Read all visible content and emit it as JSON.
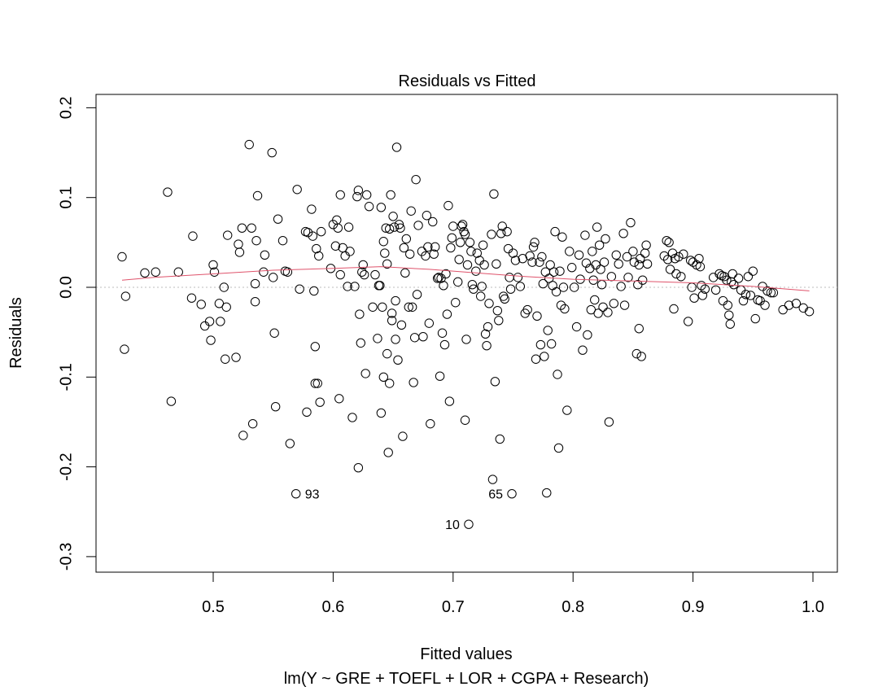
{
  "chart_data": {
    "type": "scatter",
    "title": "Residuals vs Fitted",
    "xlabel": "Fitted values",
    "subtitle": "lm(Y ~ GRE + TOEFL + LOR + CGPA + Research)",
    "ylabel": "Residuals",
    "xlim": [
      0.423,
      0.998
    ],
    "ylim": [
      -0.3,
      0.2
    ],
    "xticks": [
      0.5,
      0.6,
      0.7,
      0.8,
      0.9,
      1.0
    ],
    "xtick_labels": [
      "0.5",
      "0.6",
      "0.7",
      "0.8",
      "0.9",
      "1.0"
    ],
    "yticks": [
      -0.3,
      -0.2,
      -0.1,
      0.0,
      0.1,
      0.2
    ],
    "ytick_labels": [
      "-0.3",
      "-0.2",
      "-0.1",
      "0.0",
      "0.1",
      "0.2"
    ],
    "reference_line": 0,
    "point_labels": [
      {
        "label": "93",
        "x": 0.569,
        "y": -0.23
      },
      {
        "label": "65",
        "x": 0.749,
        "y": -0.23
      },
      {
        "label": "10",
        "x": 0.713,
        "y": -0.264
      }
    ],
    "points": [
      [
        0.424,
        0.034
      ],
      [
        0.426,
        -0.069
      ],
      [
        0.427,
        -0.01
      ],
      [
        0.443,
        0.016
      ],
      [
        0.452,
        0.017
      ],
      [
        0.462,
        0.106
      ],
      [
        0.465,
        -0.127
      ],
      [
        0.471,
        0.017
      ],
      [
        0.482,
        -0.012
      ],
      [
        0.483,
        0.057
      ],
      [
        0.49,
        -0.019
      ],
      [
        0.493,
        -0.043
      ],
      [
        0.497,
        -0.038
      ],
      [
        0.498,
        -0.059
      ],
      [
        0.5,
        0.025
      ],
      [
        0.501,
        0.017
      ],
      [
        0.505,
        -0.018
      ],
      [
        0.506,
        -0.038
      ],
      [
        0.509,
        0.0
      ],
      [
        0.51,
        -0.08
      ],
      [
        0.511,
        -0.022
      ],
      [
        0.512,
        0.058
      ],
      [
        0.519,
        -0.078
      ],
      [
        0.521,
        0.048
      ],
      [
        0.522,
        0.039
      ],
      [
        0.524,
        0.066
      ],
      [
        0.525,
        -0.165
      ],
      [
        0.53,
        0.159
      ],
      [
        0.532,
        0.066
      ],
      [
        0.533,
        -0.152
      ],
      [
        0.535,
        0.004
      ],
      [
        0.535,
        -0.016
      ],
      [
        0.536,
        0.052
      ],
      [
        0.537,
        0.102
      ],
      [
        0.542,
        0.017
      ],
      [
        0.543,
        0.036
      ],
      [
        0.549,
        0.15
      ],
      [
        0.55,
        0.011
      ],
      [
        0.551,
        -0.051
      ],
      [
        0.552,
        -0.133
      ],
      [
        0.554,
        0.076
      ],
      [
        0.558,
        0.052
      ],
      [
        0.56,
        0.018
      ],
      [
        0.562,
        0.017
      ],
      [
        0.564,
        -0.174
      ],
      [
        0.569,
        -0.23
      ],
      [
        0.57,
        0.109
      ],
      [
        0.572,
        -0.002
      ],
      [
        0.577,
        0.062
      ],
      [
        0.578,
        -0.139
      ],
      [
        0.579,
        0.061
      ],
      [
        0.582,
        0.087
      ],
      [
        0.583,
        0.057
      ],
      [
        0.584,
        -0.004
      ],
      [
        0.585,
        -0.066
      ],
      [
        0.585,
        -0.107
      ],
      [
        0.586,
        0.043
      ],
      [
        0.587,
        -0.107
      ],
      [
        0.588,
        0.035
      ],
      [
        0.589,
        -0.128
      ],
      [
        0.59,
        0.062
      ],
      [
        0.598,
        0.021
      ],
      [
        0.6,
        0.07
      ],
      [
        0.602,
        0.046
      ],
      [
        0.603,
        0.075
      ],
      [
        0.604,
        0.066
      ],
      [
        0.605,
        -0.124
      ],
      [
        0.606,
        0.014
      ],
      [
        0.606,
        0.103
      ],
      [
        0.608,
        0.044
      ],
      [
        0.61,
        0.035
      ],
      [
        0.612,
        0.001
      ],
      [
        0.613,
        0.067
      ],
      [
        0.614,
        0.04
      ],
      [
        0.616,
        -0.145
      ],
      [
        0.618,
        0.001
      ],
      [
        0.62,
        0.101
      ],
      [
        0.621,
        0.108
      ],
      [
        0.621,
        -0.201
      ],
      [
        0.622,
        -0.03
      ],
      [
        0.623,
        -0.062
      ],
      [
        0.624,
        0.017
      ],
      [
        0.625,
        0.025
      ],
      [
        0.626,
        0.014
      ],
      [
        0.627,
        -0.096
      ],
      [
        0.628,
        0.103
      ],
      [
        0.63,
        0.09
      ],
      [
        0.633,
        -0.022
      ],
      [
        0.635,
        0.014
      ],
      [
        0.637,
        -0.057
      ],
      [
        0.638,
        0.002
      ],
      [
        0.639,
        0.002
      ],
      [
        0.64,
        0.089
      ],
      [
        0.64,
        -0.14
      ],
      [
        0.641,
        -0.022
      ],
      [
        0.642,
        0.051
      ],
      [
        0.642,
        -0.1
      ],
      [
        0.643,
        0.038
      ],
      [
        0.644,
        0.066
      ],
      [
        0.645,
        0.026
      ],
      [
        0.645,
        -0.074
      ],
      [
        0.646,
        -0.184
      ],
      [
        0.647,
        0.065
      ],
      [
        0.647,
        -0.107
      ],
      [
        0.648,
        0.103
      ],
      [
        0.649,
        -0.029
      ],
      [
        0.649,
        -0.037
      ],
      [
        0.65,
        0.079
      ],
      [
        0.651,
        0.067
      ],
      [
        0.652,
        -0.058
      ],
      [
        0.652,
        -0.015
      ],
      [
        0.653,
        0.156
      ],
      [
        0.654,
        -0.081
      ],
      [
        0.655,
        0.07
      ],
      [
        0.656,
        0.066
      ],
      [
        0.657,
        -0.042
      ],
      [
        0.658,
        -0.166
      ],
      [
        0.659,
        0.044
      ],
      [
        0.66,
        0.016
      ],
      [
        0.661,
        0.054
      ],
      [
        0.663,
        -0.022
      ],
      [
        0.664,
        0.037
      ],
      [
        0.665,
        0.085
      ],
      [
        0.666,
        -0.022
      ],
      [
        0.667,
        -0.106
      ],
      [
        0.668,
        -0.056
      ],
      [
        0.669,
        0.12
      ],
      [
        0.67,
        -0.008
      ],
      [
        0.671,
        0.069
      ],
      [
        0.674,
        0.04
      ],
      [
        0.675,
        -0.055
      ],
      [
        0.677,
        0.035
      ],
      [
        0.678,
        0.08
      ],
      [
        0.679,
        0.045
      ],
      [
        0.68,
        -0.04
      ],
      [
        0.681,
        -0.152
      ],
      [
        0.683,
        0.073
      ],
      [
        0.684,
        0.037
      ],
      [
        0.685,
        0.045
      ],
      [
        0.687,
        0.01
      ],
      [
        0.688,
        0.011
      ],
      [
        0.689,
        -0.099
      ],
      [
        0.69,
        0.01
      ],
      [
        0.691,
        -0.051
      ],
      [
        0.692,
        0.002
      ],
      [
        0.693,
        -0.064
      ],
      [
        0.694,
        0.015
      ],
      [
        0.695,
        -0.03
      ],
      [
        0.696,
        0.091
      ],
      [
        0.697,
        -0.127
      ],
      [
        0.698,
        0.044
      ],
      [
        0.699,
        0.055
      ],
      [
        0.7,
        0.068
      ],
      [
        0.702,
        -0.017
      ],
      [
        0.704,
        0.006
      ],
      [
        0.705,
        0.031
      ],
      [
        0.706,
        0.05
      ],
      [
        0.707,
        0.068
      ],
      [
        0.708,
        0.07
      ],
      [
        0.709,
        0.062
      ],
      [
        0.71,
        -0.148
      ],
      [
        0.71,
        0.059
      ],
      [
        0.711,
        -0.058
      ],
      [
        0.712,
        0.025
      ],
      [
        0.713,
        -0.264
      ],
      [
        0.714,
        0.05
      ],
      [
        0.715,
        0.04
      ],
      [
        0.716,
        0.003
      ],
      [
        0.717,
        -0.002
      ],
      [
        0.719,
        0.018
      ],
      [
        0.72,
        0.038
      ],
      [
        0.722,
        0.03
      ],
      [
        0.723,
        -0.01
      ],
      [
        0.724,
        0.001
      ],
      [
        0.725,
        0.047
      ],
      [
        0.726,
        0.025
      ],
      [
        0.727,
        -0.052
      ],
      [
        0.728,
        -0.065
      ],
      [
        0.729,
        -0.044
      ],
      [
        0.73,
        -0.018
      ],
      [
        0.732,
        0.059
      ],
      [
        0.733,
        -0.214
      ],
      [
        0.734,
        0.104
      ],
      [
        0.735,
        -0.105
      ],
      [
        0.736,
        0.026
      ],
      [
        0.737,
        -0.026
      ],
      [
        0.738,
        -0.037
      ],
      [
        0.739,
        -0.169
      ],
      [
        0.74,
        0.06
      ],
      [
        0.741,
        0.068
      ],
      [
        0.742,
        -0.01
      ],
      [
        0.743,
        -0.013
      ],
      [
        0.745,
        0.062
      ],
      [
        0.746,
        0.043
      ],
      [
        0.747,
        0.011
      ],
      [
        0.748,
        -0.002
      ],
      [
        0.749,
        -0.23
      ],
      [
        0.75,
        0.038
      ],
      [
        0.752,
        0.03
      ],
      [
        0.754,
        0.011
      ],
      [
        0.756,
        0.001
      ],
      [
        0.758,
        0.032
      ],
      [
        0.76,
        -0.029
      ],
      [
        0.762,
        -0.025
      ],
      [
        0.764,
        0.035
      ],
      [
        0.766,
        0.028
      ],
      [
        0.767,
        0.045
      ],
      [
        0.768,
        0.05
      ],
      [
        0.769,
        -0.08
      ],
      [
        0.77,
        -0.032
      ],
      [
        0.772,
        0.028
      ],
      [
        0.773,
        -0.064
      ],
      [
        0.774,
        0.034
      ],
      [
        0.775,
        0.004
      ],
      [
        0.776,
        -0.077
      ],
      [
        0.777,
        0.017
      ],
      [
        0.778,
        -0.229
      ],
      [
        0.779,
        -0.048
      ],
      [
        0.78,
        0.01
      ],
      [
        0.781,
        0.025
      ],
      [
        0.782,
        -0.063
      ],
      [
        0.783,
        0.002
      ],
      [
        0.784,
        0.017
      ],
      [
        0.785,
        0.062
      ],
      [
        0.786,
        -0.005
      ],
      [
        0.787,
        -0.097
      ],
      [
        0.788,
        -0.179
      ],
      [
        0.789,
        0.018
      ],
      [
        0.79,
        -0.02
      ],
      [
        0.791,
        0.056
      ],
      [
        0.792,
        0.0
      ],
      [
        0.793,
        -0.024
      ],
      [
        0.795,
        -0.137
      ],
      [
        0.797,
        0.04
      ],
      [
        0.799,
        0.022
      ],
      [
        0.801,
        0.0
      ],
      [
        0.803,
        -0.044
      ],
      [
        0.805,
        0.036
      ],
      [
        0.806,
        0.009
      ],
      [
        0.808,
        -0.07
      ],
      [
        0.81,
        0.058
      ],
      [
        0.811,
        0.027
      ],
      [
        0.812,
        -0.053
      ],
      [
        0.814,
        0.021
      ],
      [
        0.815,
        -0.025
      ],
      [
        0.816,
        0.04
      ],
      [
        0.817,
        0.008
      ],
      [
        0.818,
        -0.014
      ],
      [
        0.819,
        0.025
      ],
      [
        0.82,
        0.067
      ],
      [
        0.821,
        -0.029
      ],
      [
        0.822,
        0.047
      ],
      [
        0.823,
        0.02
      ],
      [
        0.824,
        0.003
      ],
      [
        0.825,
        -0.022
      ],
      [
        0.826,
        0.028
      ],
      [
        0.827,
        0.054
      ],
      [
        0.829,
        -0.028
      ],
      [
        0.83,
        -0.15
      ],
      [
        0.832,
        0.012
      ],
      [
        0.834,
        -0.018
      ],
      [
        0.836,
        0.036
      ],
      [
        0.838,
        0.026
      ],
      [
        0.84,
        0.001
      ],
      [
        0.842,
        0.06
      ],
      [
        0.843,
        -0.02
      ],
      [
        0.845,
        0.034
      ],
      [
        0.846,
        0.011
      ],
      [
        0.848,
        0.072
      ],
      [
        0.85,
        0.04
      ],
      [
        0.851,
        0.028
      ],
      [
        0.853,
        -0.074
      ],
      [
        0.854,
        0.003
      ],
      [
        0.855,
        0.025
      ],
      [
        0.855,
        -0.046
      ],
      [
        0.856,
        0.032
      ],
      [
        0.857,
        -0.077
      ],
      [
        0.858,
        0.008
      ],
      [
        0.86,
        0.038
      ],
      [
        0.861,
        0.047
      ],
      [
        0.862,
        0.026
      ],
      [
        0.876,
        0.035
      ],
      [
        0.878,
        0.052
      ],
      [
        0.879,
        0.031
      ],
      [
        0.88,
        0.05
      ],
      [
        0.881,
        0.02
      ],
      [
        0.883,
        0.038
      ],
      [
        0.884,
        -0.024
      ],
      [
        0.885,
        0.032
      ],
      [
        0.886,
        0.015
      ],
      [
        0.888,
        0.034
      ],
      [
        0.89,
        0.012
      ],
      [
        0.892,
        0.037
      ],
      [
        0.896,
        -0.038
      ],
      [
        0.898,
        0.03
      ],
      [
        0.899,
        0.0
      ],
      [
        0.9,
        0.028
      ],
      [
        0.901,
        -0.012
      ],
      [
        0.903,
        0.025
      ],
      [
        0.905,
        0.032
      ],
      [
        0.906,
        0.023
      ],
      [
        0.907,
        0.002
      ],
      [
        0.908,
        -0.009
      ],
      [
        0.91,
        -0.002
      ],
      [
        0.917,
        0.011
      ],
      [
        0.919,
        -0.003
      ],
      [
        0.922,
        0.015
      ],
      [
        0.924,
        0.013
      ],
      [
        0.925,
        -0.015
      ],
      [
        0.926,
        0.012
      ],
      [
        0.928,
        0.008
      ],
      [
        0.929,
        -0.02
      ],
      [
        0.93,
        -0.031
      ],
      [
        0.931,
        -0.041
      ],
      [
        0.932,
        0.006
      ],
      [
        0.933,
        0.015
      ],
      [
        0.934,
        0.003
      ],
      [
        0.938,
        0.01
      ],
      [
        0.94,
        -0.003
      ],
      [
        0.942,
        -0.015
      ],
      [
        0.944,
        -0.008
      ],
      [
        0.946,
        0.012
      ],
      [
        0.948,
        -0.009
      ],
      [
        0.95,
        0.018
      ],
      [
        0.952,
        -0.035
      ],
      [
        0.954,
        -0.014
      ],
      [
        0.956,
        -0.015
      ],
      [
        0.958,
        0.001
      ],
      [
        0.96,
        -0.02
      ],
      [
        0.962,
        -0.004
      ],
      [
        0.965,
        -0.006
      ],
      [
        0.967,
        -0.006
      ],
      [
        0.975,
        -0.025
      ],
      [
        0.98,
        -0.02
      ],
      [
        0.986,
        -0.018
      ],
      [
        0.992,
        -0.023
      ],
      [
        0.997,
        -0.027
      ]
    ],
    "smooth": [
      [
        0.424,
        0.008
      ],
      [
        0.45,
        0.011
      ],
      [
        0.5,
        0.015
      ],
      [
        0.55,
        0.019
      ],
      [
        0.6,
        0.021
      ],
      [
        0.64,
        0.023
      ],
      [
        0.68,
        0.02
      ],
      [
        0.72,
        0.016
      ],
      [
        0.76,
        0.012
      ],
      [
        0.8,
        0.009
      ],
      [
        0.85,
        0.007
      ],
      [
        0.9,
        0.005
      ],
      [
        0.95,
        0.001
      ],
      [
        0.997,
        -0.004
      ]
    ],
    "colors": {
      "points": "#000000",
      "smooth": "#df536b",
      "reference": "#bebebe"
    }
  }
}
